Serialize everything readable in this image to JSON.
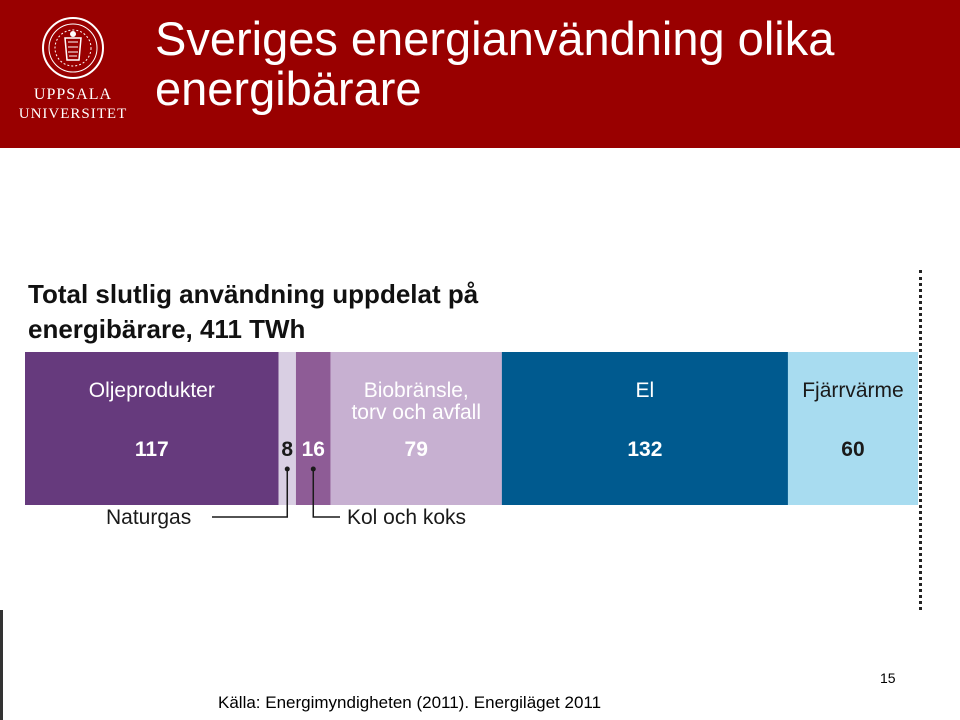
{
  "header": {
    "title": "Sveriges energianvändning olika energibärare",
    "logo_line1": "UPPSALA",
    "logo_line2": "UNIVERSITET"
  },
  "colors": {
    "header_bg": "#990000"
  },
  "chart_data": {
    "type": "bar",
    "orientation": "horizontal-stacked",
    "title": "Total slutlig användning uppdelat på energibärare, 411 TWh",
    "total": 411,
    "unit": "TWh",
    "segments": [
      {
        "name": "Oljeprodukter",
        "value": 117,
        "color": "#663a7d",
        "label": "Oljeprodukter",
        "value_label": "117",
        "inside": true
      },
      {
        "name": "Naturgas",
        "value": 8,
        "color": "#d9cfe3",
        "label": "",
        "value_label": "8",
        "inside": false
      },
      {
        "name": "Kol och koks",
        "value": 16,
        "color": "#8e5c96",
        "label": "",
        "value_label": "16",
        "inside": false
      },
      {
        "name": "Biobränsle, torv och avfall",
        "value": 79,
        "color": "#c7b0d1",
        "label": "Biobränsle,\ntorv och avfall",
        "value_label": "79",
        "inside": true
      },
      {
        "name": "El",
        "value": 132,
        "color": "#005a8f",
        "label": "El",
        "value_label": "132",
        "inside": true
      },
      {
        "name": "Fjärrvärme",
        "value": 60,
        "color": "#a8dcf0",
        "label": "Fjärrvärme",
        "value_label": "60",
        "inside": true
      }
    ],
    "callouts": [
      {
        "segment": "Naturgas",
        "text": "Naturgas"
      },
      {
        "segment": "Kol och koks",
        "text": "Kol och koks"
      }
    ]
  },
  "footer": {
    "page_number": "15",
    "source": "Källa: Energimyndigheten (2011). Energiläget 2011"
  }
}
